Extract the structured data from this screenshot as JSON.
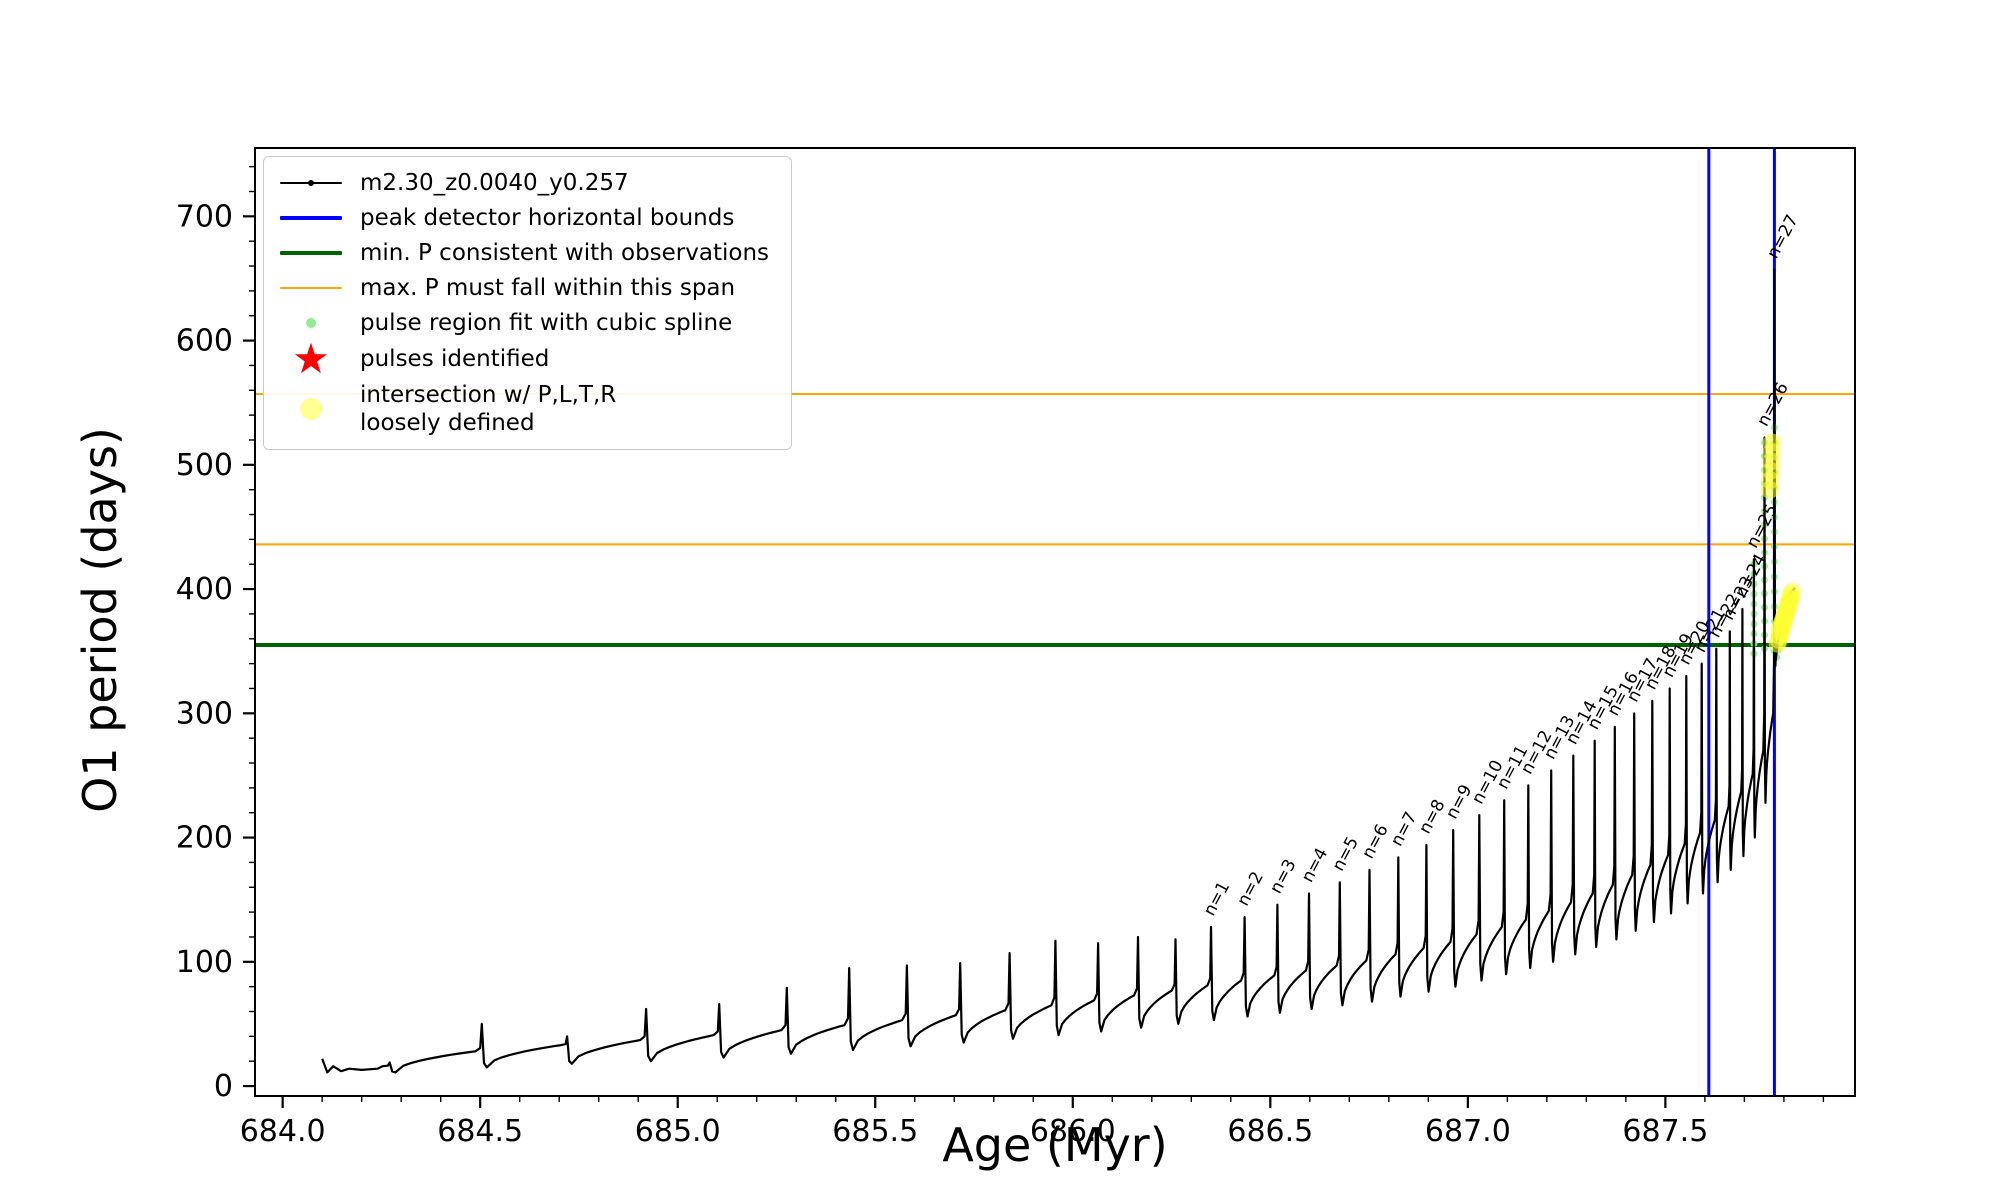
{
  "chart_data": {
    "type": "line",
    "title": "",
    "xlabel": "Age (Myr)",
    "ylabel": "O1 period (days)",
    "xlim": [
      683.93,
      687.98
    ],
    "ylim": [
      -8,
      755
    ],
    "xticks": [
      684.0,
      684.5,
      685.0,
      685.5,
      686.0,
      686.5,
      687.0,
      687.5
    ],
    "xtick_labels": [
      "684.0",
      "684.5",
      "685.0",
      "685.5",
      "686.0",
      "686.5",
      "687.0",
      "687.5"
    ],
    "yticks": [
      0,
      100,
      200,
      300,
      400,
      500,
      600,
      700
    ],
    "x_minor_step": 0.1,
    "y_minor_step": 20,
    "grid": false,
    "series_name": "m2.30_z0.0040_y0.257",
    "series_color": "#000000",
    "pulse_label_prefix": "n=",
    "pulse_label_rotation_deg": 62,
    "start_points": [
      [
        684.1,
        22
      ],
      [
        684.113,
        11
      ],
      [
        684.128,
        16
      ],
      [
        684.148,
        12
      ],
      [
        684.168,
        14
      ],
      [
        684.2,
        13
      ],
      [
        684.24,
        14
      ]
    ],
    "pulses": [
      {
        "n": null,
        "age": 684.271,
        "pre": 16,
        "peak": 19,
        "post": 11,
        "w": 0.018
      },
      {
        "n": null,
        "age": 684.504,
        "pre": 28,
        "peak": 50,
        "post": 15,
        "w": 0.016
      },
      {
        "n": null,
        "age": 684.72,
        "pre": 33,
        "peak": 40,
        "post": 18,
        "w": 0.015
      },
      {
        "n": null,
        "age": 684.92,
        "pre": 37,
        "peak": 62,
        "post": 20,
        "w": 0.015
      },
      {
        "n": null,
        "age": 685.105,
        "pre": 41,
        "peak": 66,
        "post": 23,
        "w": 0.014
      },
      {
        "n": null,
        "age": 685.276,
        "pre": 45,
        "peak": 79,
        "post": 26,
        "w": 0.013
      },
      {
        "n": null,
        "age": 685.434,
        "pre": 49,
        "peak": 95,
        "post": 29,
        "w": 0.012
      },
      {
        "n": null,
        "age": 685.58,
        "pre": 53,
        "peak": 97,
        "post": 32,
        "w": 0.012
      },
      {
        "n": null,
        "age": 685.715,
        "pre": 57,
        "peak": 99,
        "post": 35,
        "w": 0.011
      },
      {
        "n": null,
        "age": 685.84,
        "pre": 61,
        "peak": 107,
        "post": 38,
        "w": 0.011
      },
      {
        "n": null,
        "age": 685.956,
        "pre": 65,
        "peak": 117,
        "post": 41,
        "w": 0.01
      },
      {
        "n": null,
        "age": 686.064,
        "pre": 69,
        "peak": 115,
        "post": 44,
        "w": 0.01
      },
      {
        "n": null,
        "age": 686.165,
        "pre": 73,
        "peak": 120,
        "post": 47,
        "w": 0.01
      },
      {
        "n": null,
        "age": 686.26,
        "pre": 77,
        "peak": 118,
        "post": 50,
        "w": 0.009
      },
      {
        "n": 1,
        "age": 686.35,
        "pre": 81,
        "peak": 128,
        "post": 53,
        "w": 0.009
      },
      {
        "n": 2,
        "age": 686.435,
        "pre": 85,
        "peak": 136,
        "post": 56,
        "w": 0.009
      },
      {
        "n": 3,
        "age": 686.518,
        "pre": 89,
        "peak": 146,
        "post": 59,
        "w": 0.008
      },
      {
        "n": 4,
        "age": 686.598,
        "pre": 93,
        "peak": 155,
        "post": 62,
        "w": 0.008
      },
      {
        "n": 5,
        "age": 686.676,
        "pre": 97,
        "peak": 164,
        "post": 65,
        "w": 0.008
      },
      {
        "n": 6,
        "age": 686.751,
        "pre": 101,
        "peak": 174,
        "post": 68,
        "w": 0.008
      },
      {
        "n": 7,
        "age": 686.824,
        "pre": 106,
        "peak": 184,
        "post": 72,
        "w": 0.007
      },
      {
        "n": 8,
        "age": 686.895,
        "pre": 111,
        "peak": 194,
        "post": 76,
        "w": 0.007
      },
      {
        "n": 9,
        "age": 686.963,
        "pre": 116,
        "peak": 206,
        "post": 80,
        "w": 0.007
      },
      {
        "n": 10,
        "age": 687.029,
        "pre": 122,
        "peak": 218,
        "post": 85,
        "w": 0.007
      },
      {
        "n": 11,
        "age": 687.092,
        "pre": 128,
        "peak": 230,
        "post": 90,
        "w": 0.006
      },
      {
        "n": 12,
        "age": 687.153,
        "pre": 134,
        "peak": 242,
        "post": 95,
        "w": 0.006
      },
      {
        "n": 13,
        "age": 687.211,
        "pre": 141,
        "peak": 254,
        "post": 100,
        "w": 0.006
      },
      {
        "n": 14,
        "age": 687.267,
        "pre": 148,
        "peak": 266,
        "post": 106,
        "w": 0.006
      },
      {
        "n": 15,
        "age": 687.321,
        "pre": 155,
        "peak": 278,
        "post": 112,
        "w": 0.005
      },
      {
        "n": 16,
        "age": 687.372,
        "pre": 162,
        "peak": 289,
        "post": 118,
        "w": 0.005
      },
      {
        "n": 17,
        "age": 687.421,
        "pre": 170,
        "peak": 300,
        "post": 125,
        "w": 0.005
      },
      {
        "n": 18,
        "age": 687.467,
        "pre": 178,
        "peak": 310,
        "post": 132,
        "w": 0.005
      },
      {
        "n": 19,
        "age": 687.511,
        "pre": 186,
        "peak": 320,
        "post": 139,
        "w": 0.004
      },
      {
        "n": 20,
        "age": 687.553,
        "pre": 195,
        "peak": 330,
        "post": 147,
        "w": 0.004
      },
      {
        "n": 21,
        "age": 687.592,
        "pre": 204,
        "peak": 340,
        "post": 155,
        "w": 0.004
      },
      {
        "n": 22,
        "age": 687.629,
        "pre": 214,
        "peak": 352,
        "post": 164,
        "w": 0.004
      },
      {
        "n": 23,
        "age": 687.663,
        "pre": 225,
        "peak": 366,
        "post": 174,
        "w": 0.003
      },
      {
        "n": 24,
        "age": 687.695,
        "pre": 237,
        "peak": 384,
        "post": 185,
        "w": 0.003
      },
      {
        "n": 25,
        "age": 687.724,
        "pre": 251,
        "peak": 424,
        "post": 200,
        "w": 0.003
      },
      {
        "n": 26,
        "age": 687.751,
        "pre": 270,
        "peak": 522,
        "post": 228,
        "w": 0.003
      },
      {
        "n": 27,
        "age": 687.776,
        "pre": 300,
        "peak": 657,
        "post": 338,
        "w": 0.003
      }
    ],
    "end_points": [
      [
        687.779,
        342
      ],
      [
        687.784,
        356
      ],
      [
        687.79,
        368
      ],
      [
        687.796,
        378
      ],
      [
        687.804,
        387
      ],
      [
        687.812,
        394
      ],
      [
        687.82,
        398
      ],
      [
        687.828,
        401
      ]
    ],
    "hlines": [
      {
        "label": "min. P consistent with observations",
        "y": 355,
        "color": "#006400",
        "width": 4
      },
      {
        "label": "max. P span lower bound",
        "y": 436,
        "color": "#ffa500",
        "width": 2
      },
      {
        "label": "max. P span upper bound",
        "y": 557,
        "color": "#ffa500",
        "width": 2
      }
    ],
    "vlines": [
      {
        "label": "peak detector left bound",
        "x": 687.61,
        "color": "#0000ff",
        "width": 3
      },
      {
        "label": "peak detector right bound",
        "x": 687.776,
        "color": "#0000ff",
        "width": 3
      }
    ],
    "scatter": [
      {
        "name": "pulse region fit with cubic spline",
        "color": "#90ee90",
        "radius": 3.5,
        "opacity": 0.9,
        "segments": [
          {
            "x0": 687.724,
            "y0": 348,
            "x1": 687.724,
            "y1": 420,
            "count": 10
          },
          {
            "x0": 687.751,
            "y0": 352,
            "x1": 687.751,
            "y1": 518,
            "count": 16
          },
          {
            "x0": 687.776,
            "y0": 350,
            "x1": 687.776,
            "y1": 530,
            "count": 16
          },
          {
            "x0": 687.782,
            "y0": 345,
            "x1": 687.82,
            "y1": 397,
            "count": 10
          }
        ]
      },
      {
        "name": "intersection w/ P,L,T,R loosely defined",
        "color": "#ffff33",
        "radius": 9,
        "opacity": 0.55,
        "segments": [
          {
            "x0": 687.784,
            "y0": 356,
            "x1": 687.82,
            "y1": 398,
            "count": 14
          },
          {
            "x0": 687.79,
            "y0": 368,
            "x1": 687.816,
            "y1": 392,
            "count": 10
          },
          {
            "x0": 687.764,
            "y0": 480,
            "x1": 687.77,
            "y1": 518,
            "count": 6
          }
        ]
      }
    ]
  },
  "legend": {
    "items": [
      {
        "label": "m2.30_z0.0040_y0.257",
        "marker": "line-dot",
        "color": "#000000",
        "lw": 1.5
      },
      {
        "label": "peak detector horizontal bounds",
        "marker": "line",
        "color": "#0000ff",
        "lw": 4
      },
      {
        "label": "min. P consistent with observations",
        "marker": "line",
        "color": "#006400",
        "lw": 4
      },
      {
        "label": "max. P must fall within this span",
        "marker": "line",
        "color": "#ffa500",
        "lw": 2.5
      },
      {
        "label": "pulse region fit with cubic spline",
        "marker": "dot-small",
        "color": "#90ee90"
      },
      {
        "label": "pulses identified",
        "marker": "star",
        "color": "#ff0000"
      },
      {
        "label": "intersection w/ P,L,T,R\nloosely defined",
        "marker": "dot-large",
        "color": "#ffff4d"
      }
    ]
  }
}
